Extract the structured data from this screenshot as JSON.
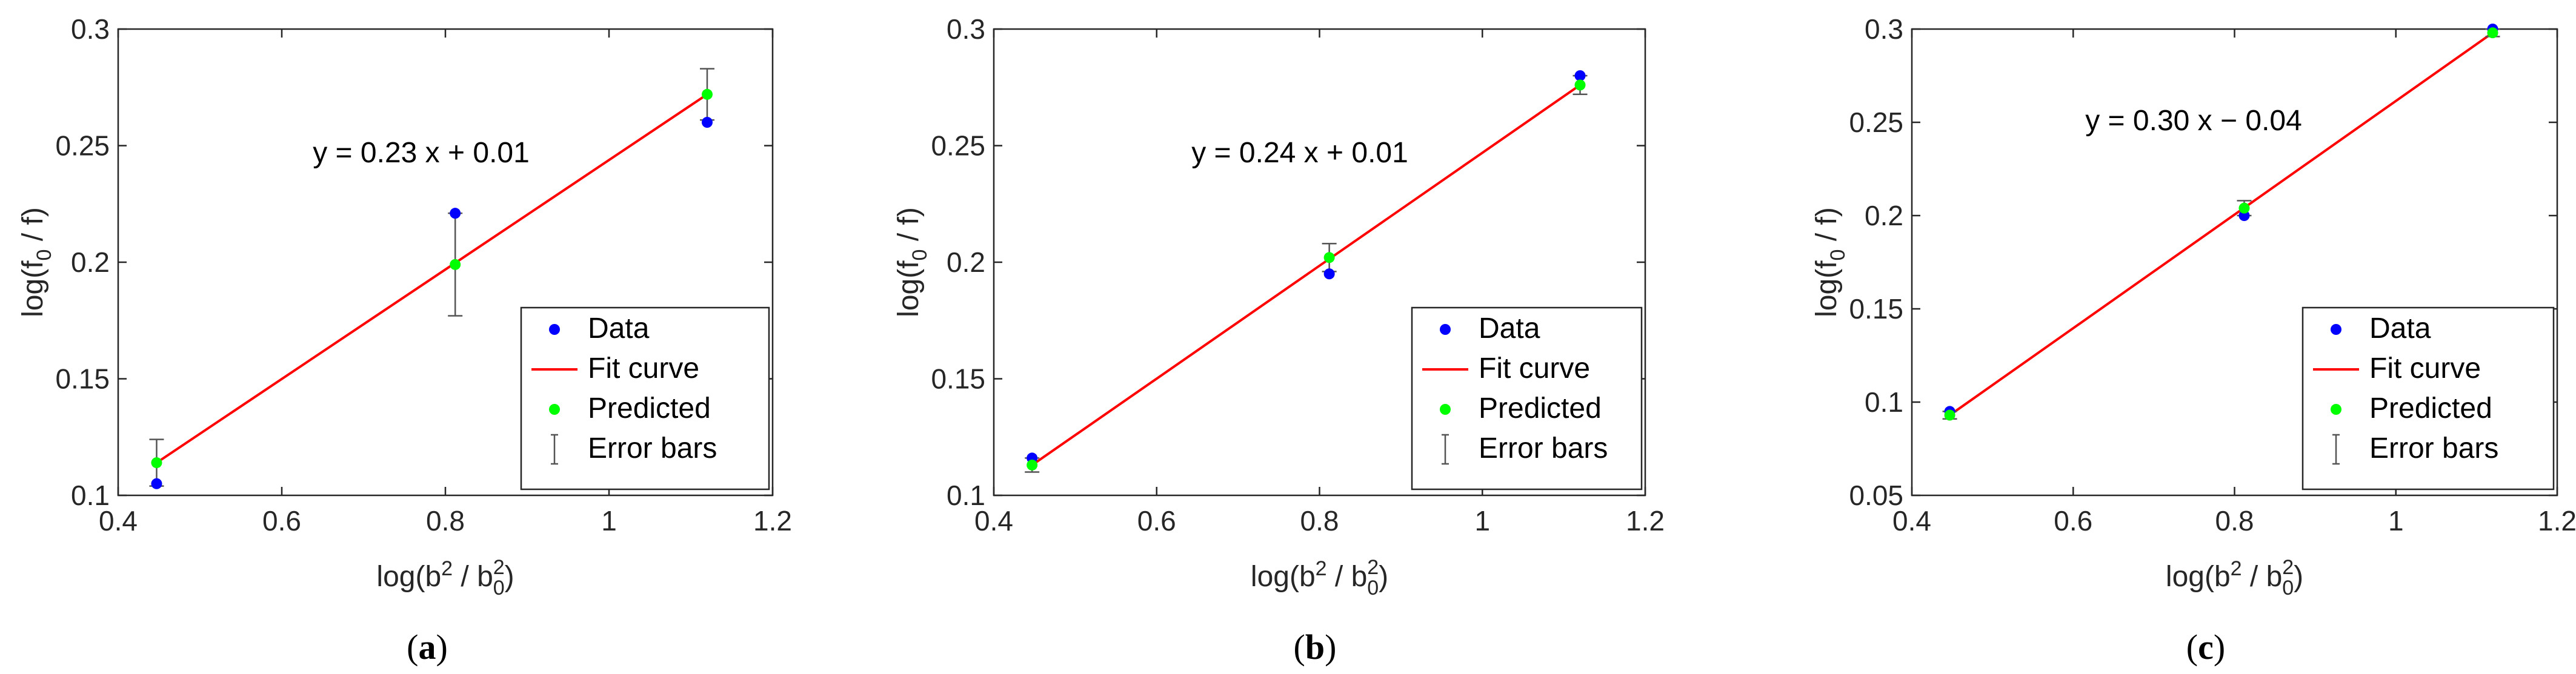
{
  "chart_data": [
    {
      "type": "scatter",
      "panel_label": "(a)",
      "panel_letter": "a",
      "xlabel": "log(b² / b₀²)",
      "xlabel_parts": {
        "pre": "log(b",
        "sup1": "2",
        "mid": " / b",
        "sub": "0",
        "sup2": "2",
        "post": ")"
      },
      "ylabel": "log(f₀ / f)",
      "ylabel_parts": {
        "pre": "log(f",
        "sub": "0",
        "post": " / f)"
      },
      "xlim": [
        0.4,
        1.2
      ],
      "ylim": [
        0.1,
        0.3
      ],
      "xticks": [
        0.4,
        0.6,
        0.8,
        1.0,
        1.2
      ],
      "xtick_labels": [
        "0.4",
        "0.6",
        "0.8",
        "1",
        "1.2"
      ],
      "yticks": [
        0.1,
        0.15,
        0.2,
        0.25,
        0.3
      ],
      "ytick_labels": [
        "0.1",
        "0.15",
        "0.2",
        "0.25",
        "0.3"
      ],
      "equation": "y = 0.23 x + 0.01",
      "series": [
        {
          "name": "Data",
          "x": [
            0.447,
            0.812,
            1.12
          ],
          "y": [
            0.105,
            0.221,
            0.26
          ],
          "color": "#0000ff"
        },
        {
          "name": "Fit curve",
          "x": [
            0.447,
            1.12
          ],
          "y": [
            0.114,
            0.272
          ],
          "color": "#ff0000"
        },
        {
          "name": "Predicted",
          "x": [
            0.447,
            0.812,
            1.12
          ],
          "y": [
            0.114,
            0.199,
            0.272
          ],
          "color": "#00ff00"
        }
      ],
      "error_bars": {
        "name": "Error bars",
        "x": [
          0.447,
          0.812,
          1.12
        ],
        "y": [
          0.114,
          0.199,
          0.272
        ],
        "err": [
          0.01,
          0.022,
          0.011
        ],
        "color": "#555555"
      },
      "legend": [
        "Data",
        "Fit curve",
        "Predicted",
        "Error bars"
      ],
      "legend_position": "bottom-right"
    },
    {
      "type": "scatter",
      "panel_label": "(b)",
      "panel_letter": "b",
      "xlabel": "log(b² / b₀²)",
      "xlabel_parts": {
        "pre": "log(b",
        "sup1": "2",
        "mid": " / b",
        "sub": "0",
        "sup2": "2",
        "post": ")"
      },
      "ylabel": "log(f₀ / f)",
      "ylabel_parts": {
        "pre": "log(f",
        "sub": "0",
        "post": " / f)"
      },
      "xlim": [
        0.4,
        1.2
      ],
      "ylim": [
        0.1,
        0.3
      ],
      "xticks": [
        0.4,
        0.6,
        0.8,
        1.0,
        1.2
      ],
      "xtick_labels": [
        "0.4",
        "0.6",
        "0.8",
        "1",
        "1.2"
      ],
      "yticks": [
        0.1,
        0.15,
        0.2,
        0.25,
        0.3
      ],
      "ytick_labels": [
        "0.1",
        "0.15",
        "0.2",
        "0.25",
        "0.3"
      ],
      "equation": "y = 0.24 x + 0.01",
      "series": [
        {
          "name": "Data",
          "x": [
            0.447,
            0.812,
            1.12
          ],
          "y": [
            0.116,
            0.195,
            0.28
          ],
          "color": "#0000ff"
        },
        {
          "name": "Fit curve",
          "x": [
            0.447,
            1.12
          ],
          "y": [
            0.113,
            0.276
          ],
          "color": "#ff0000"
        },
        {
          "name": "Predicted",
          "x": [
            0.447,
            0.812,
            1.12
          ],
          "y": [
            0.113,
            0.202,
            0.276
          ],
          "color": "#00ff00"
        }
      ],
      "error_bars": {
        "name": "Error bars",
        "x": [
          0.447,
          0.812,
          1.12
        ],
        "y": [
          0.113,
          0.202,
          0.276
        ],
        "err": [
          0.003,
          0.006,
          0.004
        ],
        "color": "#555555"
      },
      "legend": [
        "Data",
        "Fit curve",
        "Predicted",
        "Error bars"
      ],
      "legend_position": "bottom-right"
    },
    {
      "type": "scatter",
      "panel_label": "(c)",
      "panel_letter": "c",
      "xlabel": "log(b² / b₀²)",
      "xlabel_parts": {
        "pre": "log(b",
        "sup1": "2",
        "mid": " / b",
        "sub": "0",
        "sup2": "2",
        "post": ")"
      },
      "ylabel": "log(f₀ / f)",
      "ylabel_parts": {
        "pre": "log(f",
        "sub": "0",
        "post": " / f)"
      },
      "xlim": [
        0.4,
        1.2
      ],
      "ylim": [
        0.05,
        0.3
      ],
      "xticks": [
        0.4,
        0.6,
        0.8,
        1.0,
        1.2
      ],
      "xtick_labels": [
        "0.4",
        "0.6",
        "0.8",
        "1",
        "1.2"
      ],
      "yticks": [
        0.05,
        0.1,
        0.15,
        0.2,
        0.25,
        0.3
      ],
      "ytick_labels": [
        "0.05",
        "0.1",
        "0.15",
        "0.2",
        "0.25",
        "0.3"
      ],
      "equation": "y = 0.30 x − 0.04",
      "series": [
        {
          "name": "Data",
          "x": [
            0.447,
            0.812,
            1.12
          ],
          "y": [
            0.095,
            0.2,
            0.3
          ],
          "color": "#0000ff"
        },
        {
          "name": "Fit curve",
          "x": [
            0.447,
            1.12
          ],
          "y": [
            0.093,
            0.298
          ],
          "color": "#ff0000"
        },
        {
          "name": "Predicted",
          "x": [
            0.447,
            0.812,
            1.12
          ],
          "y": [
            0.093,
            0.204,
            0.298
          ],
          "color": "#00ff00"
        }
      ],
      "error_bars": {
        "name": "Error bars",
        "x": [
          0.447,
          0.812,
          1.12
        ],
        "y": [
          0.093,
          0.204,
          0.298
        ],
        "err": [
          0.002,
          0.004,
          0.002
        ],
        "color": "#555555"
      },
      "legend": [
        "Data",
        "Fit curve",
        "Predicted",
        "Error bars"
      ],
      "legend_position": "bottom-right"
    }
  ]
}
